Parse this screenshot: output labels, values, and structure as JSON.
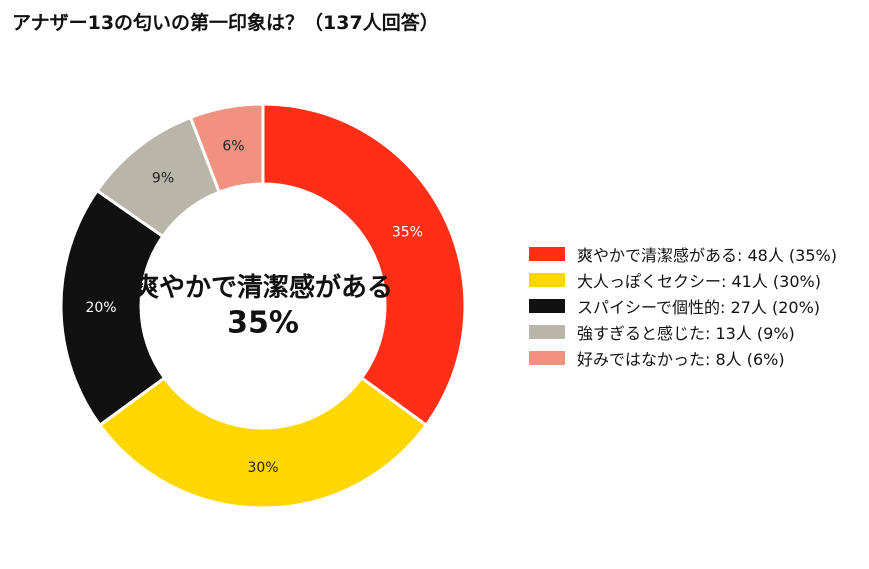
{
  "chart_data": {
    "type": "donut",
    "title": "アナザー13の匂いの第一印象は？（137人回答）",
    "total_respondents": 137,
    "series": [
      {
        "label": "爽やかで清潔感がある",
        "legend_text": "爽やかで清潔感がある:  48人 (35%)",
        "count": 48,
        "percent": 35,
        "percent_label": "35%",
        "color": "#ff2e17",
        "label_color": "#ffffff"
      },
      {
        "label": "大人っぽくセクシー",
        "legend_text": "大人っぽくセクシー:  41人 (30%)",
        "count": 41,
        "percent": 30,
        "percent_label": "30%",
        "color": "#ffd700",
        "label_color": "#222222"
      },
      {
        "label": "スパイシーで個性的",
        "legend_text": "スパイシーで個性的:  27人 (20%)",
        "count": 27,
        "percent": 20,
        "percent_label": "20%",
        "color": "#111111",
        "label_color": "#ffffff"
      },
      {
        "label": "強すぎると感じた",
        "legend_text": "強すぎると感じた:  13人 (9%)",
        "count": 13,
        "percent": 9,
        "percent_label": "9%",
        "color": "#b9b5a8",
        "label_color": "#222222"
      },
      {
        "label": "好みではなかった",
        "legend_text": "好みではなかった:  8人 (6%)",
        "count": 8,
        "percent": 6,
        "percent_label": "6%",
        "color": "#f0927f",
        "label_color": "#222222"
      }
    ],
    "center_label": "爽やかで清潔感がある",
    "center_value": "35%",
    "legend_position": "right"
  }
}
